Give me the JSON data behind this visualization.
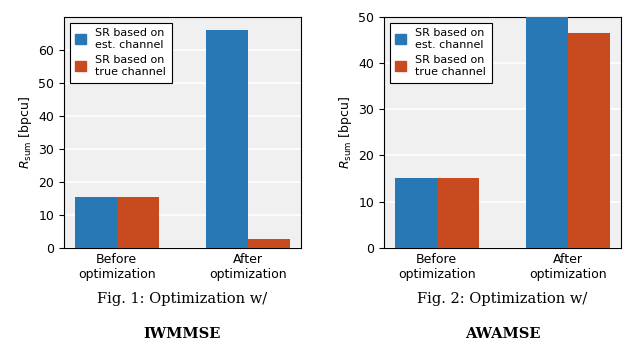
{
  "fig1": {
    "categories": [
      "Before\noptimization",
      "After\noptimization"
    ],
    "blue_values": [
      15.5,
      66.0
    ],
    "orange_values": [
      15.5,
      2.5
    ],
    "ylim": [
      0,
      70
    ],
    "yticks": [
      0,
      10,
      20,
      30,
      40,
      50,
      60
    ],
    "ylabel": "$R_{\\mathrm{sum}}$ [bpcu]",
    "caption_line1": "Fig. 1: Optimization w/",
    "caption_line2": "IWMMSE"
  },
  "fig2": {
    "categories": [
      "Before\noptimization",
      "After\noptimization"
    ],
    "blue_values": [
      15.2,
      50.1
    ],
    "orange_values": [
      15.2,
      46.5
    ],
    "ylim": [
      0,
      50
    ],
    "yticks": [
      0,
      10,
      20,
      30,
      40,
      50
    ],
    "ylabel": "$R_{\\mathrm{sum}}$ [bpcu]",
    "caption_line1": "Fig. 2: Optimization w/",
    "caption_line2": "AWAMSE"
  },
  "legend_labels": [
    "SR based on\nest. channel",
    "SR based on\ntrue channel"
  ],
  "blue_color": "#2878b5",
  "orange_color": "#c84b1f",
  "background_color": "#f0f0f0",
  "grid_color": "#ffffff",
  "bar_width": 0.32,
  "fontsize": 9,
  "caption_fontsize": 10.5,
  "legend_fontsize": 8
}
